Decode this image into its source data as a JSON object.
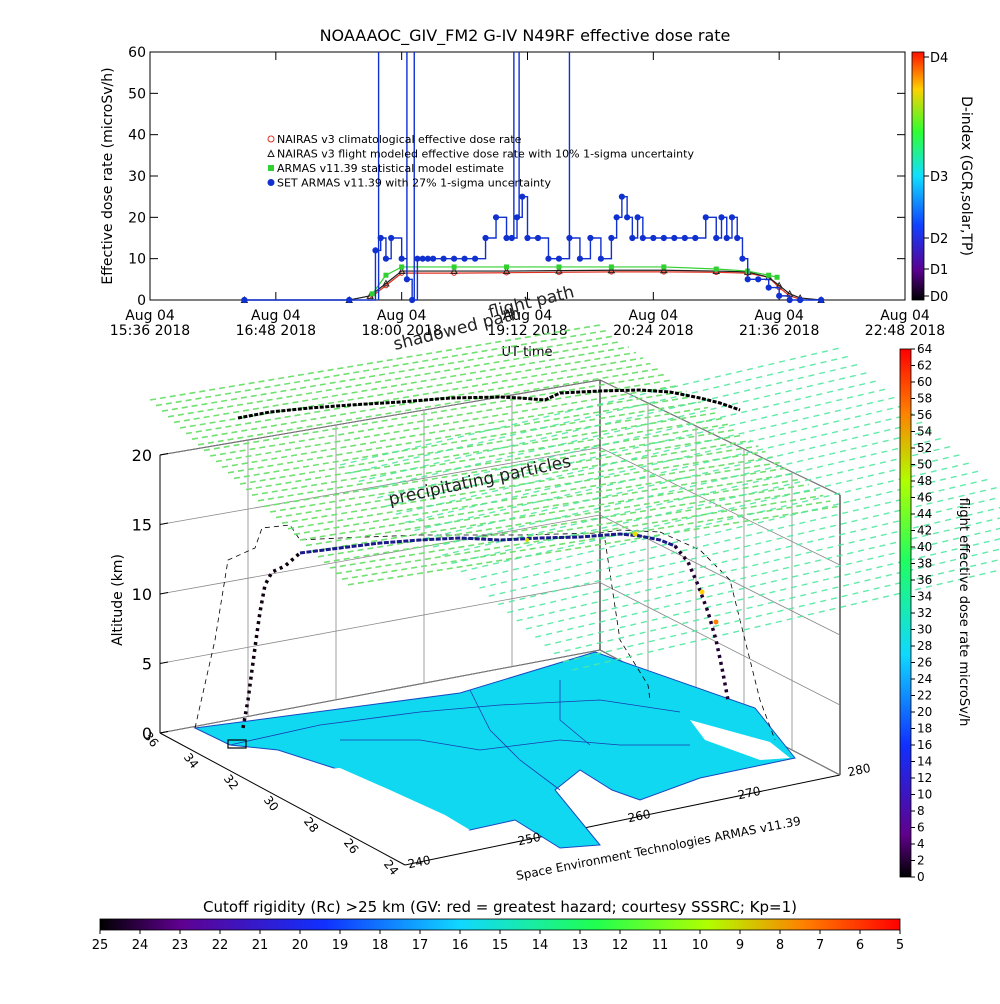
{
  "chart_data": [
    {
      "type": "scatter",
      "title": "NOAAAOC_GIV_FM2  G-IV    N49RF   effective dose rate",
      "ylabel": "Effective dose rate (microSv/h)",
      "xlabel": "UT time",
      "ylim": [
        0,
        60
      ],
      "yticks": [
        0,
        10,
        20,
        30,
        40,
        50,
        60
      ],
      "x_units": "hours UT on Aug 04 2018",
      "xlim": [
        15.6,
        22.8
      ],
      "xticks": [
        {
          "value": 15.6,
          "line1": "Aug 04",
          "line2": "15:36 2018"
        },
        {
          "value": 16.8,
          "line1": "Aug 04",
          "line2": "16:48 2018"
        },
        {
          "value": 18.0,
          "line1": "Aug 04",
          "line2": "18:00 2018"
        },
        {
          "value": 19.2,
          "line1": "Aug 04",
          "line2": "19:12 2018"
        },
        {
          "value": 20.4,
          "line1": "Aug 04",
          "line2": "20:24 2018"
        },
        {
          "value": 21.6,
          "line1": "Aug 04",
          "line2": "21:36 2018"
        },
        {
          "value": 22.8,
          "line1": "Aug 04",
          "line2": "22:48 2018"
        }
      ],
      "legend": {
        "placement": "upper-left-inside",
        "entries": [
          {
            "label": "NAIRAS v3 climatological effective dose rate",
            "color": "#e03020"
          },
          {
            "label": "NAIRAS v3 flight modeled effective dose rate with 10% 1-sigma uncertainty",
            "color": "#202020"
          },
          {
            "label": "ARMAS v11.39 statistical model estimate",
            "color": "#30d030"
          },
          {
            "label": "SET ARMAS v11.39 with 27% 1-sigma uncertainty",
            "color": "#1030d0"
          }
        ]
      },
      "right_axis": {
        "label": "D-index (GCR,solar,TP)",
        "ticks": [
          "D0",
          "D1",
          "D2",
          "D3",
          "D4"
        ]
      },
      "overlay_labels": [
        "shadowed path",
        "flight path"
      ],
      "series": [
        {
          "name": "NAIRAS v3 climatological effective dose rate",
          "color": "#e03020",
          "x": [
            17.7,
            17.85,
            18.0,
            18.5,
            19.0,
            19.5,
            20.0,
            20.5,
            21.0,
            21.3,
            21.5,
            21.6,
            21.7,
            21.8
          ],
          "y": [
            0.5,
            3.5,
            6.5,
            6.5,
            6.6,
            6.7,
            6.8,
            6.8,
            6.7,
            6.5,
            5.5,
            3.0,
            1.0,
            0.2
          ]
        },
        {
          "name": "NAIRAS v3 flight modeled effective dose rate with 10% 1-sigma uncertainty",
          "color": "#202020",
          "x": [
            16.5,
            17.5,
            17.7,
            17.85,
            18.0,
            18.5,
            19.0,
            19.5,
            20.0,
            20.5,
            21.0,
            21.3,
            21.5,
            21.6,
            21.7,
            21.8,
            22.0
          ],
          "y": [
            0,
            0,
            1.0,
            4.0,
            7.0,
            7.0,
            7.0,
            7.1,
            7.2,
            7.2,
            7.0,
            6.8,
            5.5,
            3.5,
            1.5,
            0.5,
            0
          ]
        },
        {
          "name": "ARMAS v11.39 statistical model estimate",
          "color": "#30d030",
          "x": [
            17.72,
            17.85,
            18.0,
            18.5,
            19.0,
            19.5,
            20.0,
            20.5,
            21.0,
            21.3,
            21.5,
            21.58
          ],
          "y": [
            1.5,
            6.0,
            8.0,
            8.0,
            8.0,
            8.0,
            8.0,
            8.0,
            7.5,
            7.0,
            6.0,
            5.5
          ]
        },
        {
          "name": "SET ARMAS v11.39 with 27% 1-sigma uncertainty",
          "color": "#1030d0",
          "x": [
            16.5,
            17.5,
            17.75,
            17.8,
            17.85,
            17.9,
            18.0,
            18.05,
            18.1,
            18.15,
            18.2,
            18.25,
            18.3,
            18.4,
            18.5,
            18.6,
            18.7,
            18.8,
            18.9,
            19.0,
            19.05,
            19.1,
            19.15,
            19.2,
            19.3,
            19.4,
            19.5,
            19.6,
            19.7,
            19.8,
            19.9,
            20.0,
            20.05,
            20.1,
            20.15,
            20.2,
            20.25,
            20.3,
            20.4,
            20.5,
            20.6,
            20.7,
            20.8,
            20.9,
            21.0,
            21.05,
            21.1,
            21.15,
            21.2,
            21.25,
            21.3,
            21.4,
            21.5,
            21.6,
            21.7,
            21.8,
            22.0
          ],
          "y": [
            0,
            0,
            12,
            15,
            10,
            15,
            10,
            5,
            0,
            10,
            10,
            10,
            10,
            10,
            10,
            10,
            10,
            15,
            20,
            15,
            15,
            20,
            25,
            15,
            15,
            10,
            10,
            15,
            10,
            15,
            10,
            15,
            20,
            25,
            20,
            15,
            20,
            15,
            15,
            15,
            15,
            15,
            15,
            20,
            15,
            20,
            15,
            20,
            15,
            10,
            5,
            5,
            3,
            1,
            0,
            0,
            0
          ]
        }
      ]
    },
    {
      "type": "scatter",
      "subtype": "3d-flight-track",
      "ylabel": "Altitude (km)",
      "zticks": [
        0,
        5,
        10,
        15,
        20
      ],
      "latitude_ticks": [
        "36",
        "34",
        "32",
        "30",
        "28",
        "26",
        "24"
      ],
      "longitude_ticks": [
        "240",
        "250",
        "260",
        "270",
        "280"
      ],
      "annotations": [
        "precipitating particles"
      ],
      "credit": "Space Environment Technologies ARMAS v11.39",
      "colorbar": {
        "label": "flight effective dose rate microSv/h",
        "min": 0,
        "max": 64,
        "ticks": [
          0,
          2,
          4,
          6,
          8,
          10,
          12,
          14,
          16,
          18,
          20,
          22,
          24,
          26,
          28,
          30,
          32,
          34,
          36,
          38,
          40,
          42,
          44,
          46,
          48,
          50,
          52,
          54,
          56,
          58,
          60,
          62,
          64
        ]
      }
    },
    {
      "type": "heatmap",
      "subtype": "colorbar",
      "title": "Cutoff rigidity (Rc) >25 km (GV: red = greatest hazard; courtesy SSSRC; Kp=1)",
      "ticks": [
        25,
        24,
        23,
        22,
        21,
        20,
        19,
        18,
        17,
        16,
        15,
        14,
        13,
        12,
        11,
        10,
        9,
        8,
        7,
        6,
        5
      ]
    }
  ]
}
